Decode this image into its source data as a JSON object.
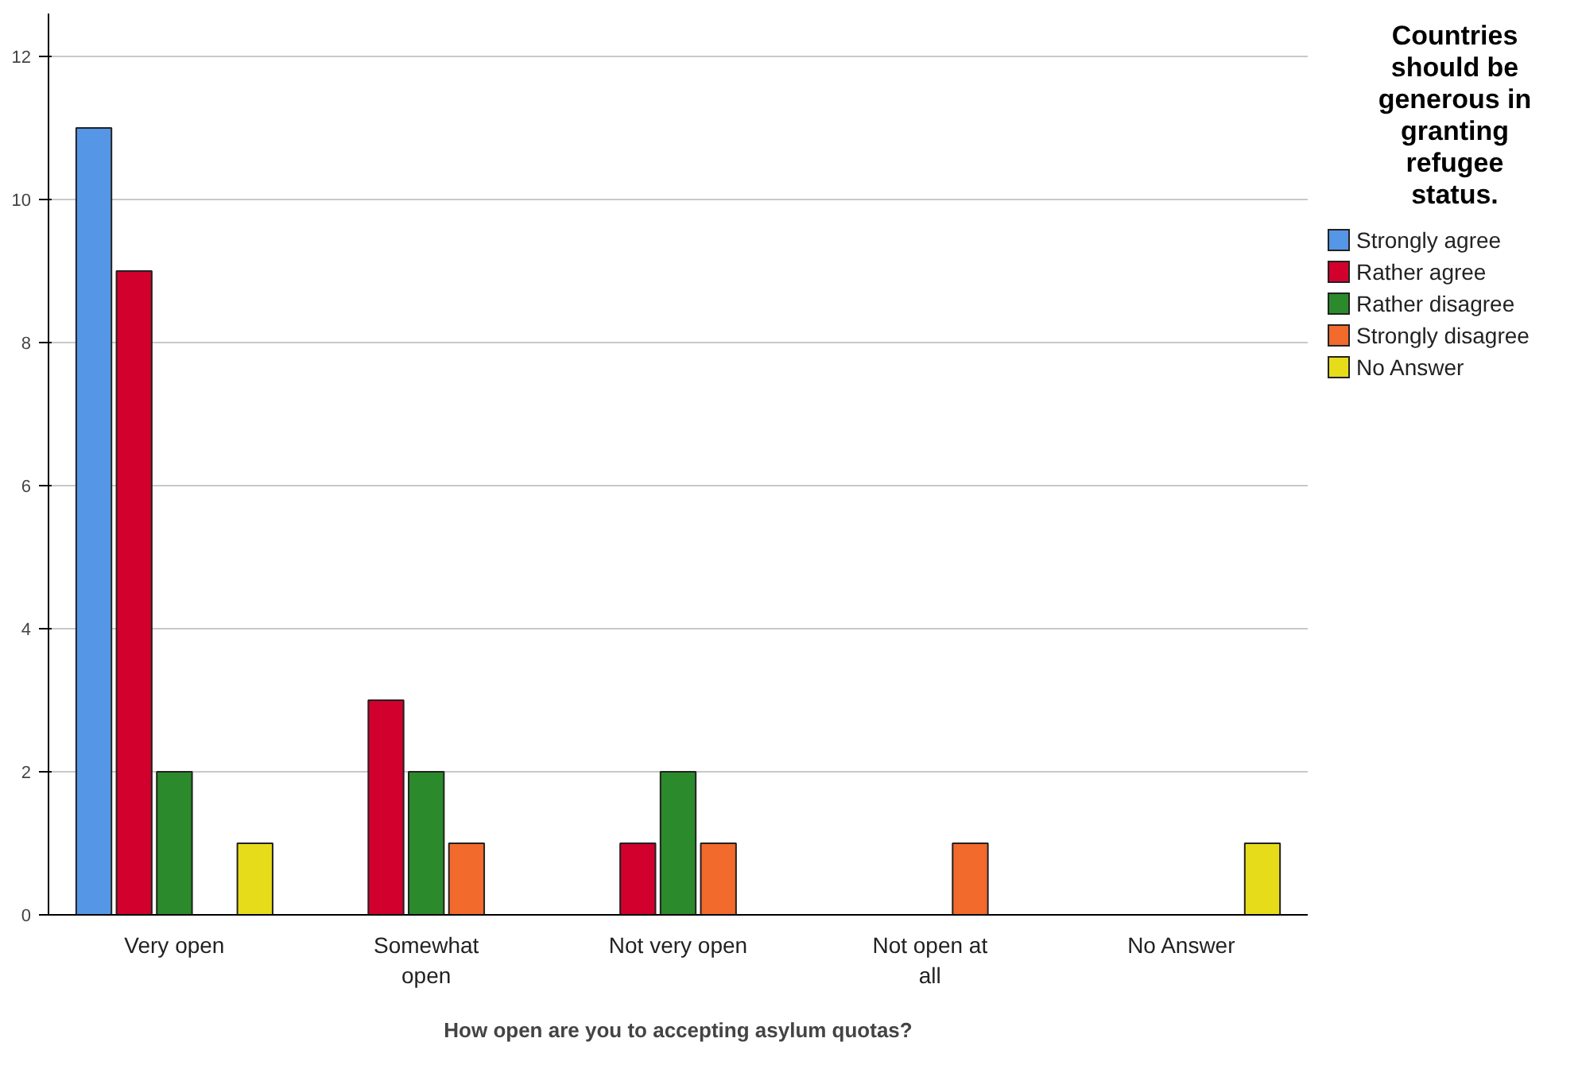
{
  "chart_data": {
    "type": "bar",
    "xlabel": "How open are you to accepting asylum quotas?",
    "legend_title": "Countries should be generous in granting refugee status.",
    "categories": [
      "Very open",
      "Somewhat open",
      "Not very open",
      "Not open at all",
      "No Answer"
    ],
    "series": [
      {
        "name": "Strongly agree",
        "color": "#5596e6",
        "values": [
          11,
          0,
          0,
          0,
          0
        ]
      },
      {
        "name": "Rather agree",
        "color": "#d1002c",
        "values": [
          9,
          3,
          1,
          0,
          0
        ]
      },
      {
        "name": "Rather disagree",
        "color": "#2b8a2b",
        "values": [
          2,
          2,
          2,
          0,
          0
        ]
      },
      {
        "name": "Strongly disagree",
        "color": "#f26a2c",
        "values": [
          0,
          1,
          1,
          1,
          0
        ]
      },
      {
        "name": "No Answer",
        "color": "#e6dc1a",
        "values": [
          1,
          0,
          0,
          0,
          1
        ]
      }
    ],
    "ylim": [
      0,
      12.6
    ],
    "yticks": [
      0,
      2,
      4,
      6,
      8,
      10,
      12
    ],
    "grid": "y",
    "legend": "right"
  }
}
